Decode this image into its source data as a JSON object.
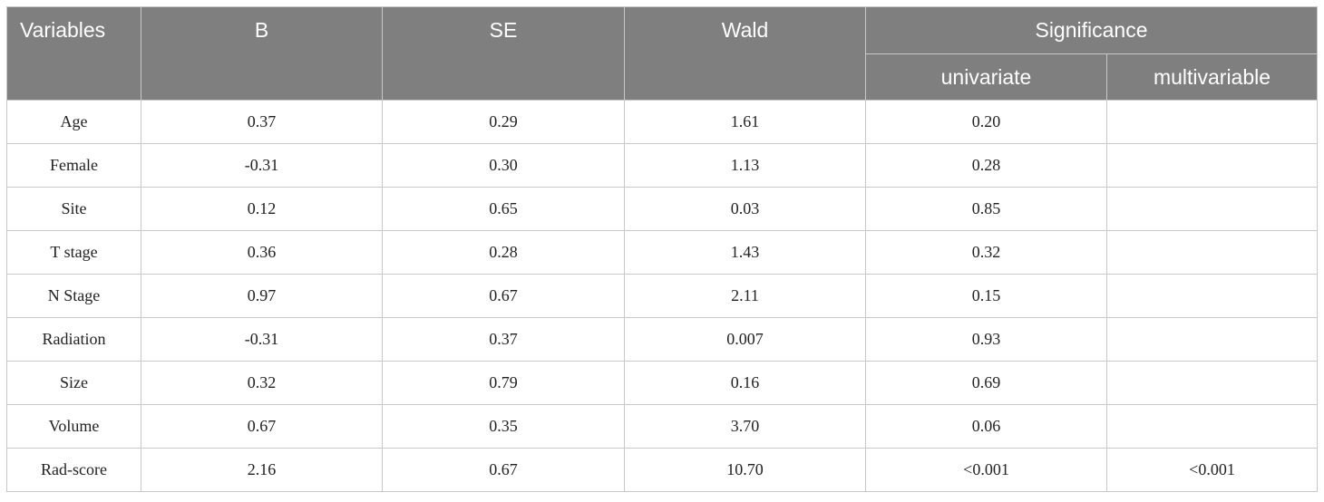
{
  "headers": {
    "variables": "Variables",
    "b": "B",
    "se": "SE",
    "wald": "Wald",
    "significance": "Significance",
    "univariate": "univariate",
    "multivariable": "multivariable"
  },
  "rows": [
    {
      "variable": "Age",
      "b": "0.37",
      "se": "0.29",
      "wald": "1.61",
      "univariate": "0.20",
      "multivariable": ""
    },
    {
      "variable": "Female",
      "b": "-0.31",
      "se": "0.30",
      "wald": "1.13",
      "univariate": "0.28",
      "multivariable": ""
    },
    {
      "variable": "Site",
      "b": "0.12",
      "se": "0.65",
      "wald": "0.03",
      "univariate": "0.85",
      "multivariable": ""
    },
    {
      "variable": "T stage",
      "b": "0.36",
      "se": "0.28",
      "wald": "1.43",
      "univariate": "0.32",
      "multivariable": ""
    },
    {
      "variable": "N Stage",
      "b": "0.97",
      "se": "0.67",
      "wald": "2.11",
      "univariate": "0.15",
      "multivariable": ""
    },
    {
      "variable": "Radiation",
      "b": "-0.31",
      "se": "0.37",
      "wald": "0.007",
      "univariate": "0.93",
      "multivariable": ""
    },
    {
      "variable": "Size",
      "b": "0.32",
      "se": "0.79",
      "wald": "0.16",
      "univariate": "0.69",
      "multivariable": ""
    },
    {
      "variable": "Volume",
      "b": "0.67",
      "se": "0.35",
      "wald": "3.70",
      "univariate": "0.06",
      "multivariable": ""
    },
    {
      "variable": "Rad-score",
      "b": "2.16",
      "se": "0.67",
      "wald": "10.70",
      "univariate": "<0.001",
      "multivariable": "<0.001"
    }
  ],
  "colors": {
    "header_bg": "#7f7f7f",
    "header_text": "#ffffff",
    "grid": "#c8c8c8"
  }
}
